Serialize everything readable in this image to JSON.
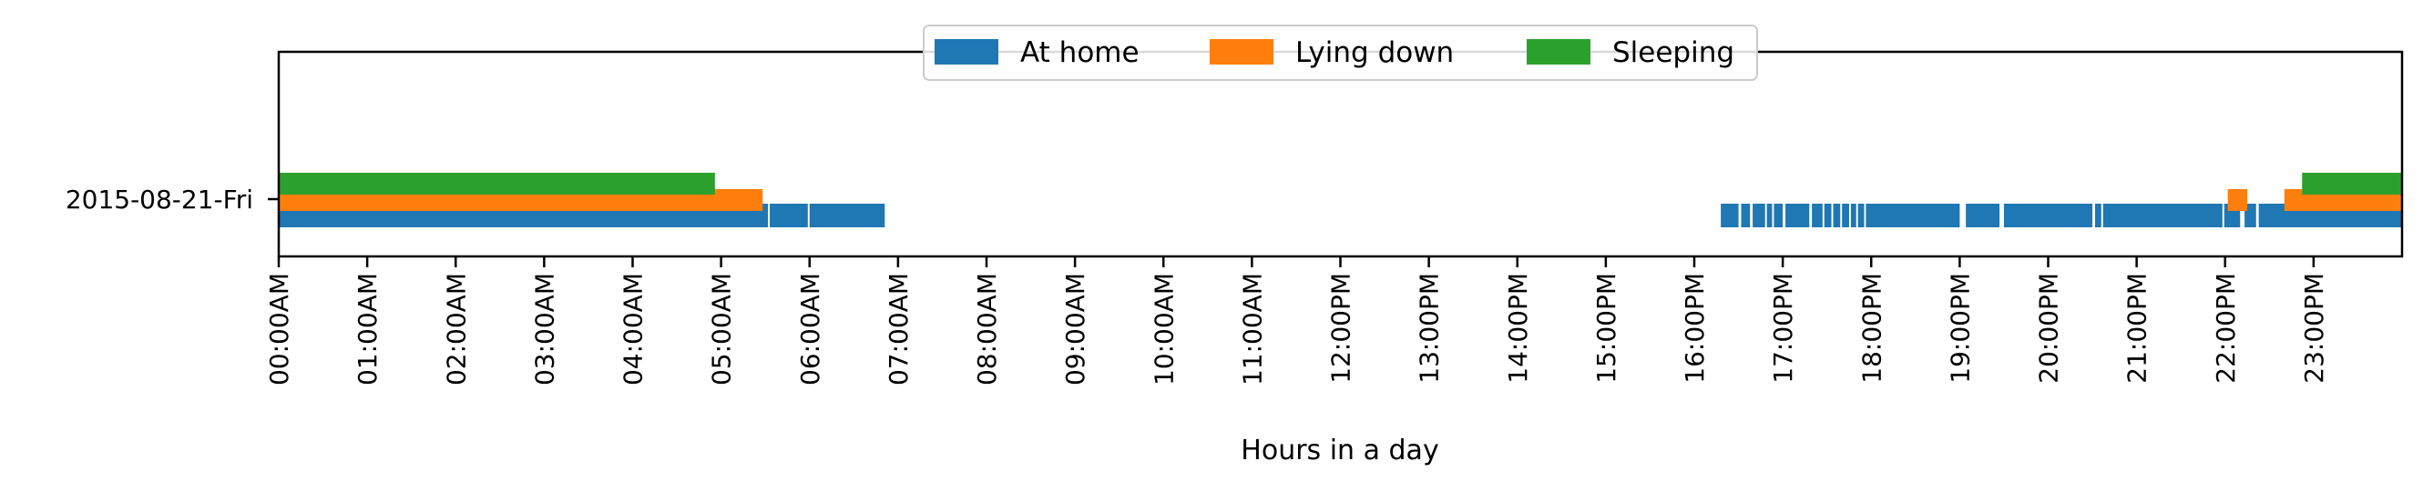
{
  "chart_data": {
    "type": "timeline",
    "xlabel": "Hours in a day",
    "xlim": [
      0,
      24
    ],
    "day_label": "2015-08-21-Fri",
    "x_ticks": [
      "00:00AM",
      "01:00AM",
      "02:00AM",
      "03:00AM",
      "04:00AM",
      "05:00AM",
      "06:00AM",
      "07:00AM",
      "08:00AM",
      "09:00AM",
      "10:00AM",
      "11:00AM",
      "12:00PM",
      "13:00PM",
      "14:00PM",
      "15:00PM",
      "16:00PM",
      "17:00PM",
      "18:00PM",
      "19:00PM",
      "20:00PM",
      "21:00PM",
      "22:00PM",
      "23:00PM"
    ],
    "legend_position": "top-center",
    "series": [
      {
        "name": "At home",
        "color": "#1f77b4",
        "intervals": [
          [
            0.0,
            5.53
          ],
          [
            5.55,
            5.98
          ],
          [
            6.0,
            6.85
          ],
          [
            16.3,
            16.5
          ],
          [
            16.53,
            16.63
          ],
          [
            16.66,
            16.8
          ],
          [
            16.82,
            16.88
          ],
          [
            16.9,
            17.0
          ],
          [
            17.03,
            17.3
          ],
          [
            17.33,
            17.45
          ],
          [
            17.47,
            17.55
          ],
          [
            17.57,
            17.65
          ],
          [
            17.67,
            17.75
          ],
          [
            17.77,
            17.83
          ],
          [
            17.85,
            17.92
          ],
          [
            17.94,
            19.0
          ],
          [
            19.07,
            19.45
          ],
          [
            19.5,
            20.5
          ],
          [
            20.53,
            20.6
          ],
          [
            20.62,
            21.97
          ],
          [
            21.99,
            22.17
          ],
          [
            22.22,
            22.35
          ],
          [
            22.38,
            24.0
          ]
        ]
      },
      {
        "name": "Lying down",
        "color": "#ff7f0e",
        "intervals": [
          [
            0.0,
            5.47
          ],
          [
            22.03,
            22.25
          ],
          [
            22.67,
            24.0
          ]
        ]
      },
      {
        "name": "Sleeping",
        "color": "#2ca02c",
        "intervals": [
          [
            0.0,
            4.93
          ],
          [
            22.87,
            24.0
          ]
        ]
      }
    ]
  }
}
